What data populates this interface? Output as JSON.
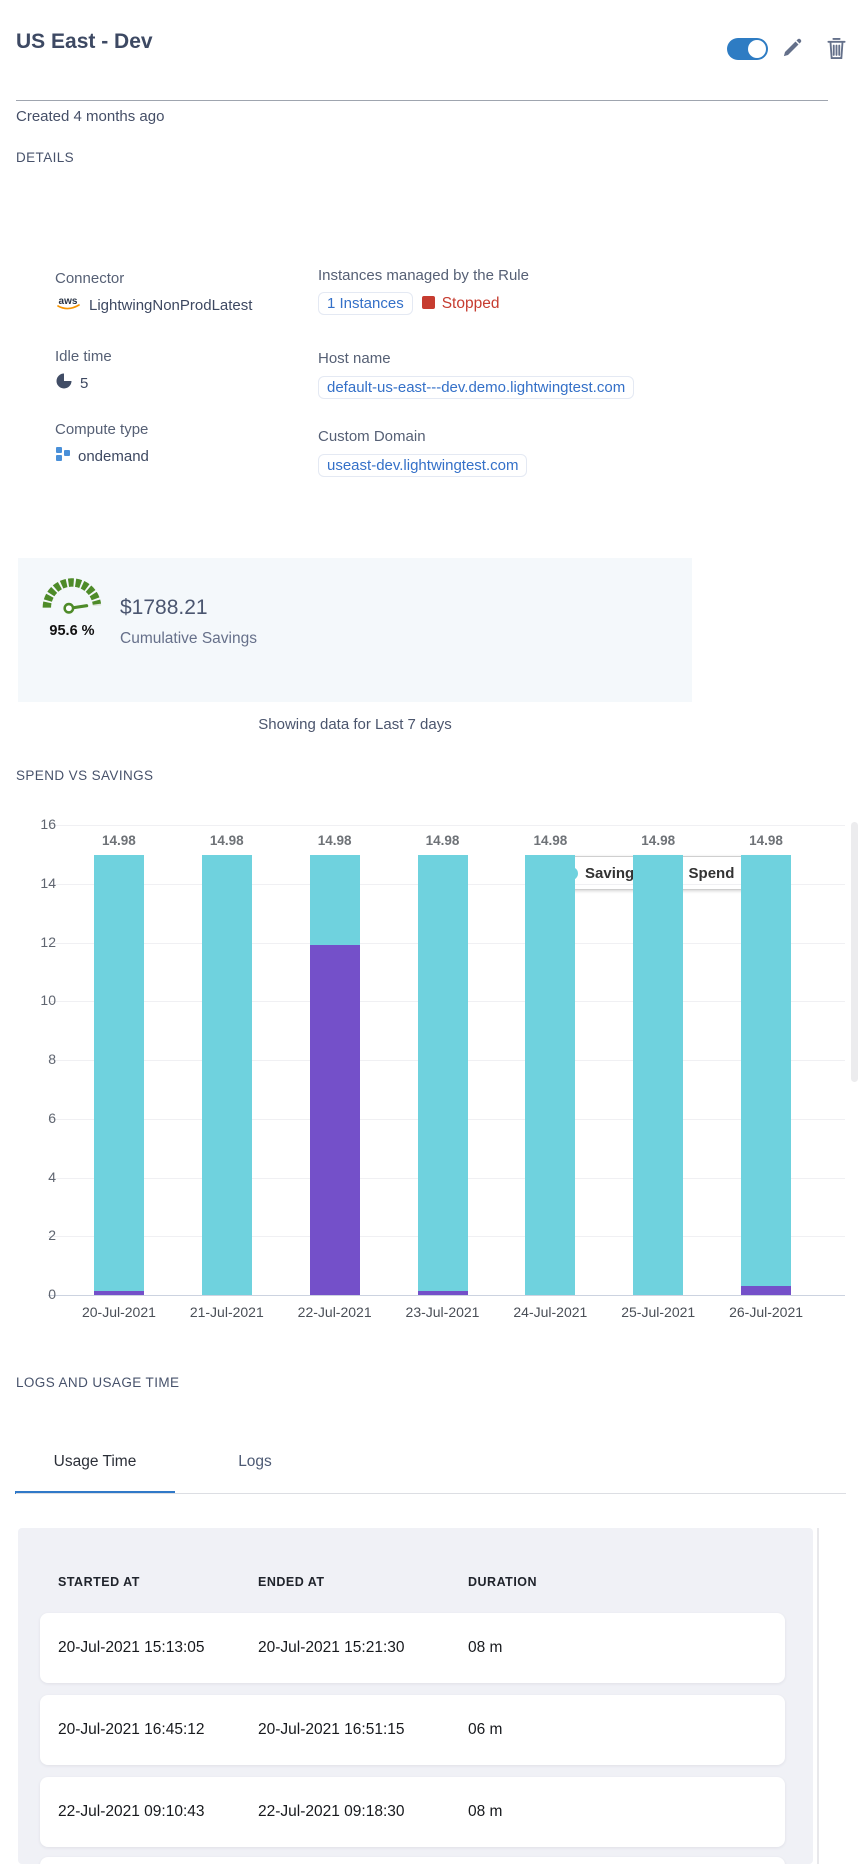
{
  "header": {
    "title": "US East - Dev"
  },
  "created_text": "Created 4 months ago",
  "details": {
    "section_title": "DETAILS",
    "connector_label": "Connector",
    "connector_value": "LightwingNonProdLatest",
    "instances_label": "Instances managed by the Rule",
    "instances_link": "1 Instances",
    "instances_status": "Stopped",
    "idle_label": "Idle time",
    "idle_value": "5",
    "host_label": "Host name",
    "host_value": "default-us-east---dev.demo.lightwingtest.com",
    "compute_label": "Compute type",
    "compute_value": "ondemand",
    "domain_label": "Custom Domain",
    "domain_value": "useast-dev.lightwingtest.com"
  },
  "savings": {
    "percent": "95.6 %",
    "amount": "$1788.21",
    "caption": "Cumulative Savings"
  },
  "period_note": "Showing data for Last 7 days",
  "chart_title": "SPEND VS SAVINGS",
  "chart_data": {
    "type": "bar",
    "stacked": true,
    "categories": [
      "20-Jul-2021",
      "21-Jul-2021",
      "22-Jul-2021",
      "23-Jul-2021",
      "24-Jul-2021",
      "25-Jul-2021",
      "26-Jul-2021"
    ],
    "series": [
      {
        "name": "Spend",
        "color": "#7450c9",
        "values": [
          0.15,
          0,
          11.93,
          0.15,
          0,
          0,
          0.3
        ]
      },
      {
        "name": "Savings",
        "color": "#6fd2de",
        "values": [
          14.83,
          14.98,
          3.05,
          14.83,
          14.98,
          14.98,
          14.68
        ]
      }
    ],
    "total_labels": [
      "14.98",
      "14.98",
      "14.98",
      "14.98",
      "14.98",
      "14.98",
      "14.98"
    ],
    "ylim": [
      0,
      16
    ],
    "ytick_step": 2,
    "grid": true,
    "legend": [
      "Savings",
      "Spend"
    ],
    "legend_position": "top-right"
  },
  "logs": {
    "section_title": "LOGS AND USAGE TIME",
    "tabs": [
      {
        "label": "Usage Time",
        "active": true
      },
      {
        "label": "Logs",
        "active": false
      }
    ]
  },
  "usage_table": {
    "columns": [
      "STARTED AT",
      "ENDED AT",
      "DURATION"
    ],
    "rows": [
      [
        "20-Jul-2021 15:13:05",
        "20-Jul-2021 15:21:30",
        "08 m"
      ],
      [
        "20-Jul-2021 16:45:12",
        "20-Jul-2021 16:51:15",
        "06 m"
      ],
      [
        "22-Jul-2021 09:10:43",
        "22-Jul-2021 09:18:30",
        "08 m"
      ]
    ]
  },
  "colors": {
    "accent_blue": "#2e7cc3",
    "link_blue": "#3470c8",
    "alert_red": "#c63c30",
    "savings_teal": "#6fd2de",
    "spend_purple": "#7450c9",
    "gauge_green": "#4e8b29"
  }
}
